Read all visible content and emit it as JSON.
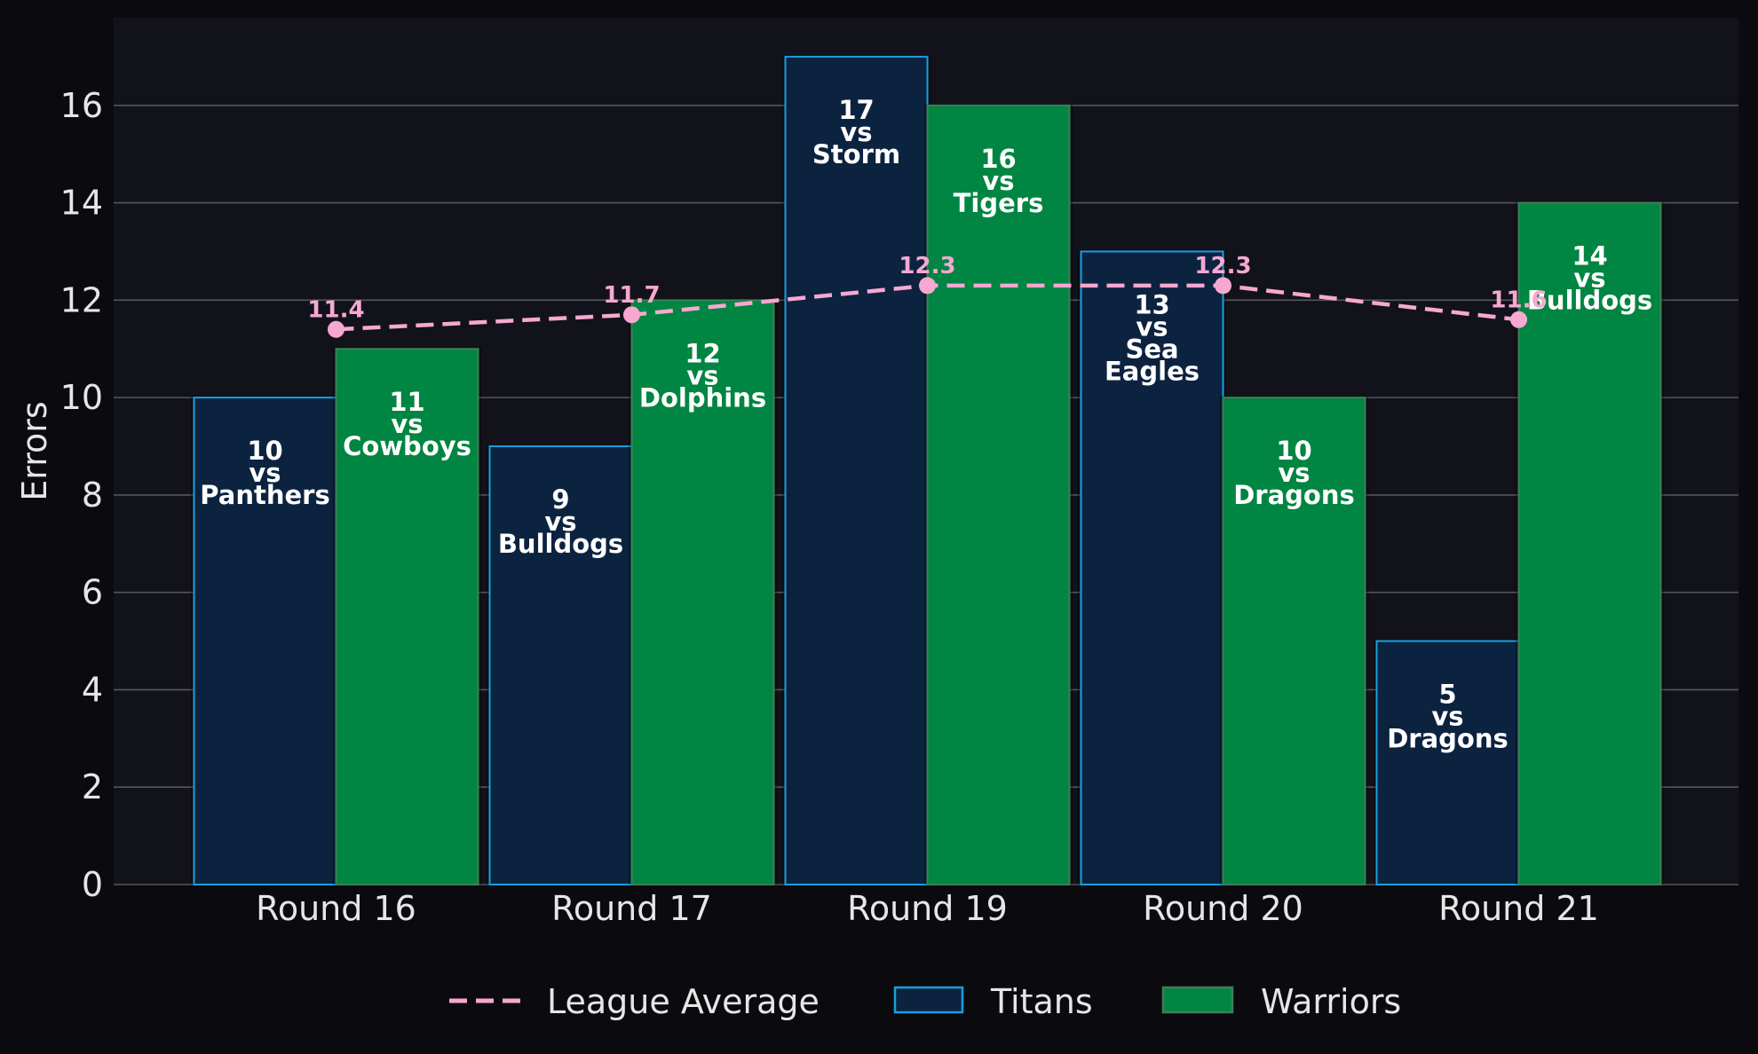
{
  "chart_data": {
    "type": "bar",
    "categories": [
      "Round 16",
      "Round 17",
      "Round 19",
      "Round 20",
      "Round 21"
    ],
    "ylabel": "Errors",
    "xlabel": "",
    "ylim": [
      0,
      17.8
    ],
    "yticks": [
      0,
      2,
      4,
      6,
      8,
      10,
      12,
      14,
      16
    ],
    "grid": true,
    "legend_position": "bottom-center",
    "series": [
      {
        "name": "Titans",
        "kind": "bar",
        "color": "#0c2340",
        "edge_color": "#1a9fe0",
        "values": [
          10,
          9,
          17,
          13,
          5
        ],
        "labels": [
          [
            "10",
            "vs",
            "Panthers"
          ],
          [
            "9",
            "vs",
            "Bulldogs"
          ],
          [
            "17",
            "vs",
            "Storm"
          ],
          [
            "13",
            "vs",
            "Sea",
            "Eagles"
          ],
          [
            "5",
            "vs",
            "Dragons"
          ]
        ]
      },
      {
        "name": "Warriors",
        "kind": "bar",
        "color": "#008542",
        "edge_color": "#3f7f5a",
        "values": [
          11,
          12,
          16,
          10,
          14
        ],
        "labels": [
          [
            "11",
            "vs",
            "Cowboys"
          ],
          [
            "12",
            "vs",
            "Dolphins"
          ],
          [
            "16",
            "vs",
            "Tigers"
          ],
          [
            "10",
            "vs",
            "Dragons"
          ],
          [
            "14",
            "vs",
            "Bulldogs"
          ]
        ]
      },
      {
        "name": "League Average",
        "kind": "line",
        "style": "dashed",
        "color": "#f7a8d0",
        "values": [
          11.4,
          11.7,
          12.3,
          12.3,
          11.6
        ],
        "labels": [
          "11.4",
          "11.7",
          "12.3",
          "12.3",
          "11.6"
        ]
      }
    ],
    "legend": [
      "League Average",
      "Titans",
      "Warriors"
    ]
  },
  "colors": {
    "page_background": "#0b0b0f",
    "plot_background": "#12131a",
    "grid": "#55565c",
    "text": "#e6e6e6",
    "bar_label": "#ffffff"
  }
}
